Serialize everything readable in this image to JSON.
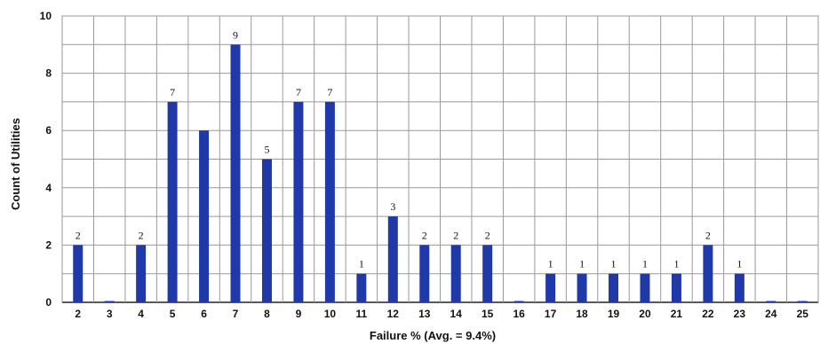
{
  "chart_data": {
    "type": "bar",
    "title": "",
    "xlabel": "Failure % (Avg. = 9.4%)",
    "ylabel": "Count of Utilities",
    "ylim": [
      0,
      10
    ],
    "yticks": [
      0,
      2,
      4,
      6,
      8,
      10
    ],
    "grid": true,
    "legend": "none",
    "bar_color": "#1f3aa8",
    "categories": [
      "2",
      "3",
      "4",
      "5",
      "6",
      "7",
      "8",
      "9",
      "10",
      "11",
      "12",
      "13",
      "14",
      "15",
      "16",
      "17",
      "18",
      "19",
      "20",
      "21",
      "22",
      "23",
      "24",
      "25"
    ],
    "values": [
      2,
      0,
      2,
      7,
      6,
      9,
      5,
      7,
      7,
      1,
      3,
      2,
      2,
      2,
      0,
      1,
      1,
      1,
      1,
      1,
      2,
      1,
      0,
      0
    ],
    "data_labels": [
      "2",
      "",
      "2",
      "7",
      "",
      "9",
      "5",
      "7",
      "7",
      "1",
      "3",
      "2",
      "2",
      "2",
      "",
      "1",
      "1",
      "1",
      "1",
      "1",
      "2",
      "1",
      "",
      ""
    ]
  }
}
